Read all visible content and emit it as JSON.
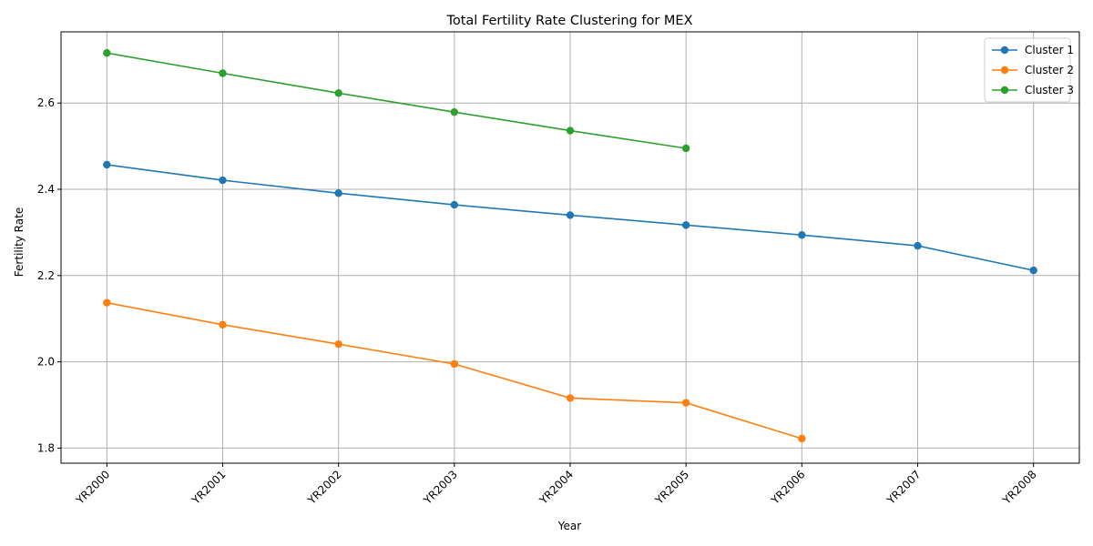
{
  "chart_data": {
    "type": "line",
    "title": "Total Fertility Rate Clustering for MEX",
    "xlabel": "Year",
    "ylabel": "Fertility Rate",
    "categories": [
      "YR2000",
      "YR2001",
      "YR2002",
      "YR2003",
      "YR2004",
      "YR2005",
      "YR2006",
      "YR2007",
      "YR2008"
    ],
    "ylim": [
      1.765,
      2.765
    ],
    "yticks": [
      1.8,
      2.0,
      2.2,
      2.4,
      2.6
    ],
    "ytick_labels": [
      "1.8",
      "2.0",
      "2.2",
      "2.4",
      "2.6"
    ],
    "grid": true,
    "legend_position": "top-right",
    "series": [
      {
        "name": "Cluster 1",
        "color": "#1f77b4",
        "values": [
          2.457,
          2.421,
          2.391,
          2.364,
          2.34,
          2.317,
          2.294,
          2.269,
          2.212
        ]
      },
      {
        "name": "Cluster 2",
        "color": "#ff7f0e",
        "values": [
          2.137,
          2.086,
          2.041,
          1.995,
          1.916,
          1.905,
          1.822,
          null,
          null
        ]
      },
      {
        "name": "Cluster 3",
        "color": "#2ca02c",
        "values": [
          2.716,
          2.669,
          2.623,
          2.579,
          2.536,
          2.495,
          null,
          null,
          null
        ]
      }
    ]
  }
}
